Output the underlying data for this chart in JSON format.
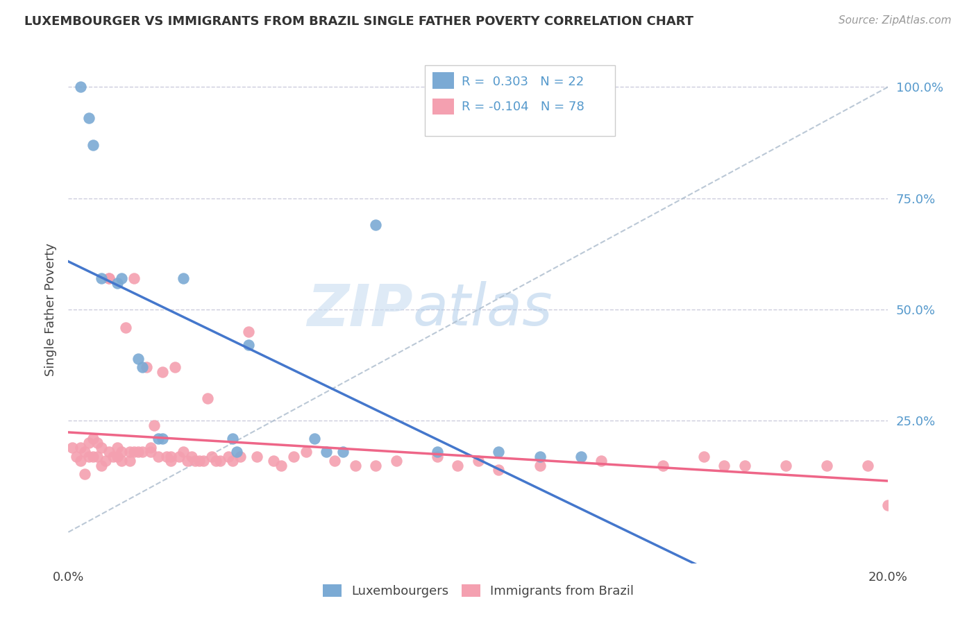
{
  "title": "LUXEMBOURGER VS IMMIGRANTS FROM BRAZIL SINGLE FATHER POVERTY CORRELATION CHART",
  "source": "Source: ZipAtlas.com",
  "ylabel": "Single Father Poverty",
  "ytick_values": [
    0.0,
    0.25,
    0.5,
    0.75,
    1.0
  ],
  "ytick_labels": [
    "",
    "25.0%",
    "50.0%",
    "75.0%",
    "100.0%"
  ],
  "xlim": [
    0.0,
    0.2
  ],
  "ylim": [
    -0.07,
    1.07
  ],
  "R_lux": 0.303,
  "N_lux": 22,
  "R_bra": -0.104,
  "N_bra": 78,
  "lux_color": "#7BAAD4",
  "bra_color": "#F4A0B0",
  "lux_line_color": "#4477CC",
  "bra_line_color": "#EE6688",
  "diag_line_color": "#AABBCC",
  "legend_lux_label": "Luxembourgers",
  "legend_bra_label": "Immigrants from Brazil",
  "watermark_zip": "ZIP",
  "watermark_atlas": "atlas",
  "background_color": "#FFFFFF",
  "grid_color": "#CCCCDD",
  "lux_x": [
    0.003,
    0.005,
    0.006,
    0.008,
    0.012,
    0.013,
    0.017,
    0.018,
    0.022,
    0.023,
    0.028,
    0.04,
    0.041,
    0.044,
    0.06,
    0.063,
    0.067,
    0.075,
    0.09,
    0.105,
    0.115,
    0.125
  ],
  "lux_y": [
    1.0,
    0.93,
    0.87,
    0.57,
    0.56,
    0.57,
    0.39,
    0.37,
    0.21,
    0.21,
    0.57,
    0.21,
    0.18,
    0.42,
    0.21,
    0.18,
    0.18,
    0.69,
    0.18,
    0.18,
    0.17,
    0.17
  ],
  "bra_x": [
    0.001,
    0.002,
    0.003,
    0.003,
    0.004,
    0.004,
    0.005,
    0.005,
    0.006,
    0.006,
    0.007,
    0.007,
    0.008,
    0.008,
    0.009,
    0.01,
    0.01,
    0.01,
    0.011,
    0.012,
    0.012,
    0.013,
    0.013,
    0.014,
    0.015,
    0.015,
    0.016,
    0.016,
    0.017,
    0.018,
    0.019,
    0.02,
    0.02,
    0.021,
    0.022,
    0.023,
    0.024,
    0.025,
    0.025,
    0.026,
    0.027,
    0.028,
    0.029,
    0.03,
    0.031,
    0.032,
    0.033,
    0.034,
    0.035,
    0.036,
    0.037,
    0.039,
    0.04,
    0.042,
    0.044,
    0.046,
    0.05,
    0.052,
    0.055,
    0.058,
    0.065,
    0.07,
    0.075,
    0.08,
    0.09,
    0.095,
    0.1,
    0.105,
    0.115,
    0.13,
    0.145,
    0.155,
    0.16,
    0.165,
    0.175,
    0.185,
    0.195,
    0.2
  ],
  "bra_y": [
    0.19,
    0.17,
    0.19,
    0.16,
    0.18,
    0.13,
    0.2,
    0.17,
    0.21,
    0.17,
    0.2,
    0.17,
    0.19,
    0.15,
    0.16,
    0.57,
    0.57,
    0.18,
    0.17,
    0.17,
    0.19,
    0.18,
    0.16,
    0.46,
    0.18,
    0.16,
    0.57,
    0.18,
    0.18,
    0.18,
    0.37,
    0.19,
    0.18,
    0.24,
    0.17,
    0.36,
    0.17,
    0.17,
    0.16,
    0.37,
    0.17,
    0.18,
    0.16,
    0.17,
    0.16,
    0.16,
    0.16,
    0.3,
    0.17,
    0.16,
    0.16,
    0.17,
    0.16,
    0.17,
    0.45,
    0.17,
    0.16,
    0.15,
    0.17,
    0.18,
    0.16,
    0.15,
    0.15,
    0.16,
    0.17,
    0.15,
    0.16,
    0.14,
    0.15,
    0.16,
    0.15,
    0.17,
    0.15,
    0.15,
    0.15,
    0.15,
    0.15,
    0.06
  ]
}
